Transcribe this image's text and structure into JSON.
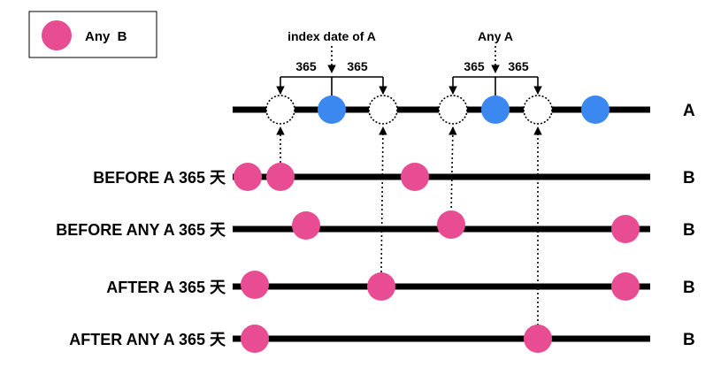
{
  "legend": {
    "label": "Any  B",
    "color": "#e84d94"
  },
  "colors": {
    "a_event": "#3b88f0",
    "b_event": "#e84d94",
    "line": "#000000"
  },
  "annotations": {
    "index_date": "index date of A",
    "any_a": "Any A",
    "window_days": "365"
  },
  "timeline_a": {
    "label": "A"
  },
  "rows": [
    {
      "title": "BEFORE A 365 天",
      "end_label": "B"
    },
    {
      "title": "BEFORE ANY A 365 天",
      "end_label": "B"
    },
    {
      "title": "AFTER A 365 天",
      "end_label": "B"
    },
    {
      "title": "AFTER ANY A 365 天",
      "end_label": "B"
    }
  ]
}
